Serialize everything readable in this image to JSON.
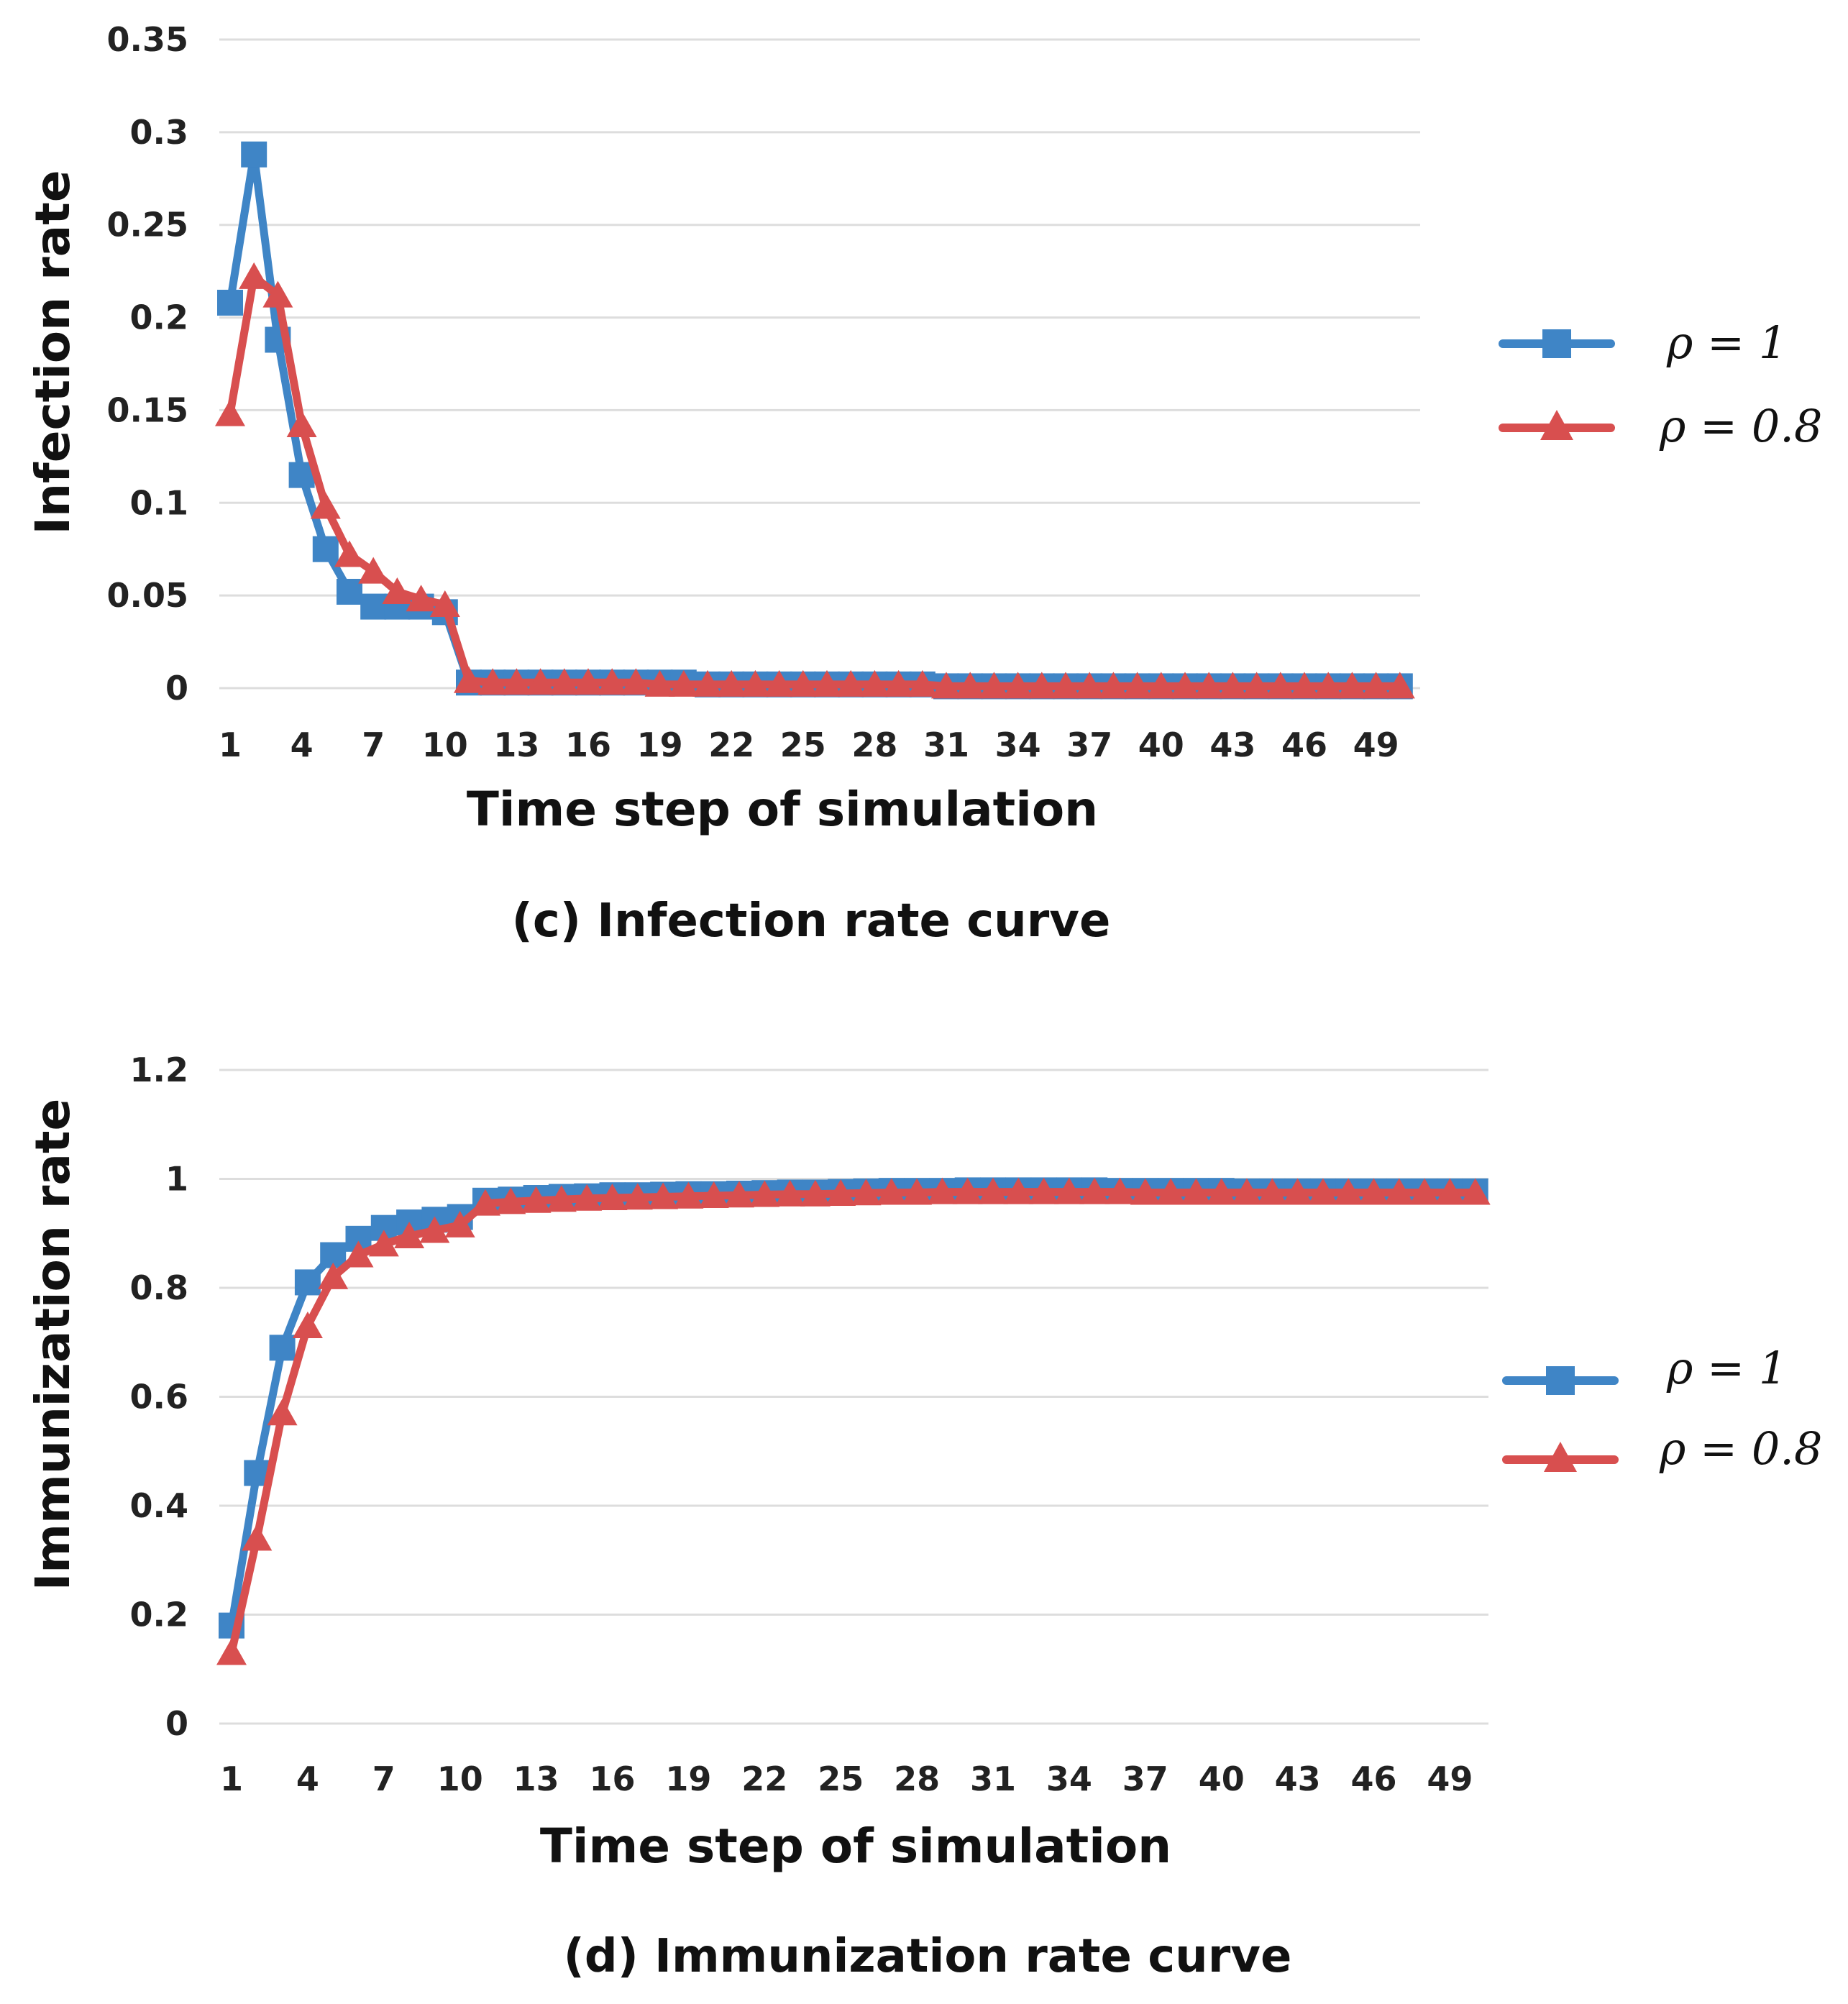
{
  "colors": {
    "series1": "#3f85c6",
    "series2": "#d84f4f",
    "grid": "#dddddd",
    "text": "#111111"
  },
  "chart_data": [
    {
      "type": "line",
      "caption": "(c) Infection rate curve",
      "xlabel": "Time step of simulation",
      "ylabel": "Infection rate",
      "ylim": [
        0,
        0.35
      ],
      "yticks": [
        "0",
        "0.05",
        "0.1",
        "0.15",
        "0.2",
        "0.25",
        "0.3",
        "0.35"
      ],
      "xticks": [
        "1",
        "4",
        "7",
        "10",
        "13",
        "16",
        "19",
        "22",
        "25",
        "28",
        "31",
        "34",
        "37",
        "40",
        "43",
        "46",
        "49"
      ],
      "grid": true,
      "legend_position": "right",
      "series": [
        {
          "name": "ρ = 1",
          "marker": "square",
          "values": [
            0.208,
            0.288,
            0.188,
            0.115,
            0.075,
            0.052,
            0.044,
            0.044,
            0.044,
            0.041,
            0.003,
            0.003,
            0.003,
            0.003,
            0.003,
            0.003,
            0.003,
            0.003,
            0.003,
            0.003,
            0.002,
            0.002,
            0.002,
            0.002,
            0.002,
            0.002,
            0.002,
            0.002,
            0.002,
            0.002,
            0.001,
            0.001,
            0.001,
            0.001,
            0.001,
            0.001,
            0.001,
            0.001,
            0.001,
            0.001,
            0.001,
            0.001,
            0.001,
            0.001,
            0.001,
            0.001,
            0.001,
            0.001,
            0.001,
            0.001
          ]
        },
        {
          "name": "ρ = 0.8",
          "marker": "triangle",
          "values": [
            0.148,
            0.222,
            0.212,
            0.142,
            0.098,
            0.072,
            0.063,
            0.052,
            0.048,
            0.045,
            0.004,
            0.003,
            0.003,
            0.003,
            0.003,
            0.003,
            0.003,
            0.003,
            0.002,
            0.002,
            0.002,
            0.002,
            0.002,
            0.002,
            0.002,
            0.002,
            0.002,
            0.002,
            0.002,
            0.002,
            0.001,
            0.001,
            0.001,
            0.001,
            0.001,
            0.001,
            0.001,
            0.001,
            0.001,
            0.001,
            0.001,
            0.001,
            0.001,
            0.001,
            0.001,
            0.001,
            0.001,
            0.001,
            0.001,
            0.001
          ]
        }
      ]
    },
    {
      "type": "line",
      "caption": "(d) Immunization rate curve",
      "xlabel": "Time step of simulation",
      "ylabel": "Immunization rate",
      "ylim": [
        0,
        1.2
      ],
      "yticks": [
        "0",
        "0.2",
        "0.4",
        "0.6",
        "0.8",
        "1",
        "1.2"
      ],
      "xticks": [
        "1",
        "4",
        "7",
        "10",
        "13",
        "16",
        "19",
        "22",
        "25",
        "28",
        "31",
        "34",
        "37",
        "40",
        "43",
        "46",
        "49"
      ],
      "grid": true,
      "legend_position": "right",
      "series": [
        {
          "name": "ρ = 1",
          "marker": "square",
          "values": [
            0.18,
            0.46,
            0.69,
            0.81,
            0.86,
            0.89,
            0.91,
            0.92,
            0.925,
            0.93,
            0.96,
            0.962,
            0.965,
            0.967,
            0.968,
            0.97,
            0.97,
            0.971,
            0.972,
            0.972,
            0.973,
            0.974,
            0.975,
            0.975,
            0.976,
            0.977,
            0.978,
            0.978,
            0.978,
            0.979,
            0.979,
            0.979,
            0.979,
            0.979,
            0.979,
            0.978,
            0.978,
            0.978,
            0.978,
            0.978,
            0.977,
            0.977,
            0.977,
            0.977,
            0.977,
            0.977,
            0.977,
            0.977,
            0.977,
            0.977
          ]
        },
        {
          "name": "ρ = 0.8",
          "marker": "triangle",
          "values": [
            0.13,
            0.34,
            0.57,
            0.73,
            0.82,
            0.86,
            0.88,
            0.895,
            0.905,
            0.915,
            0.955,
            0.958,
            0.96,
            0.962,
            0.964,
            0.965,
            0.966,
            0.967,
            0.968,
            0.969,
            0.97,
            0.971,
            0.972,
            0.972,
            0.973,
            0.974,
            0.975,
            0.975,
            0.976,
            0.976,
            0.976,
            0.976,
            0.976,
            0.976,
            0.976,
            0.976,
            0.975,
            0.975,
            0.975,
            0.975,
            0.975,
            0.975,
            0.975,
            0.975,
            0.975,
            0.975,
            0.975,
            0.975,
            0.975,
            0.975
          ]
        }
      ]
    }
  ]
}
